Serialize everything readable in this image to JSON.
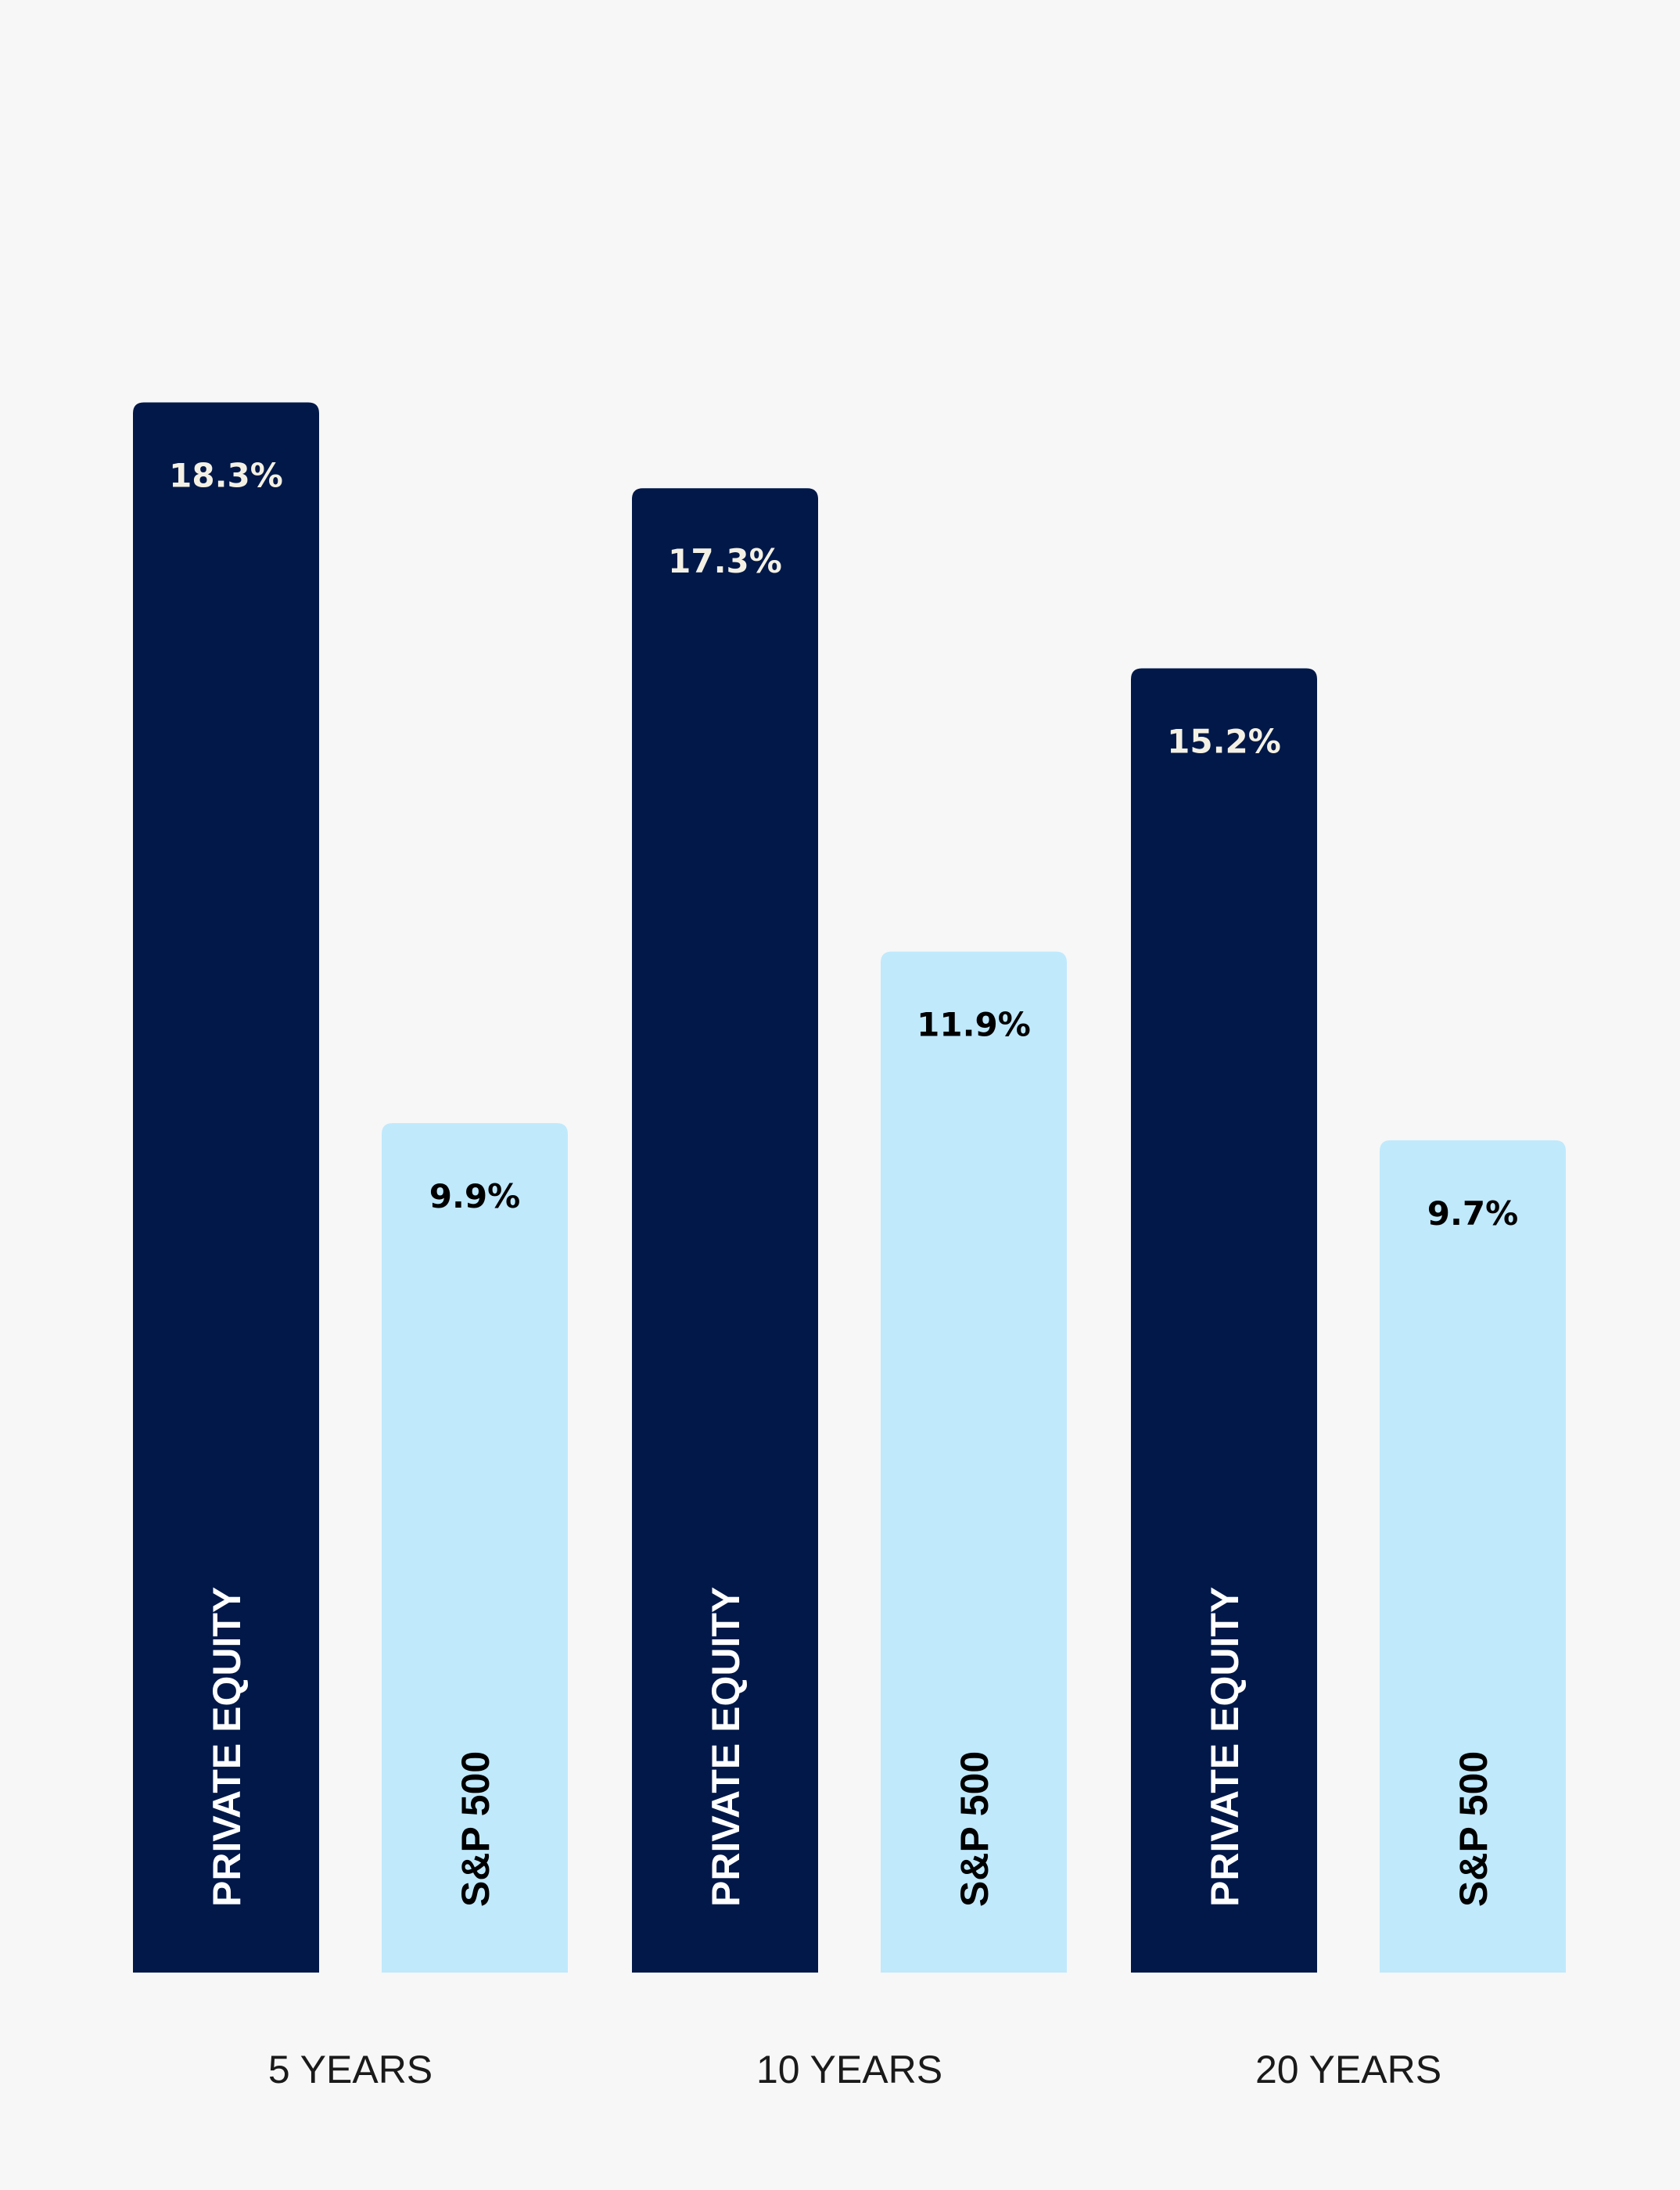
{
  "chart_data": {
    "type": "bar",
    "title": "",
    "xlabel": "",
    "ylabel": "",
    "ylim": [
      0,
      20
    ],
    "grid": false,
    "legend": "none",
    "categories": [
      "5 YEARS",
      "10 YEARS",
      "20 YEARS"
    ],
    "series": [
      {
        "name": "PRIVATE EQUITY",
        "color": "#011849",
        "value_text_color": "#f4f1e4",
        "label_text_color": "#ffffff",
        "values": [
          18.3,
          17.3,
          15.2
        ],
        "value_labels": [
          "18.3%",
          "17.3%",
          "15.2%"
        ]
      },
      {
        "name": "S&P 500",
        "color": "#c0e9fc",
        "value_text_color": "#000000",
        "label_text_color": "#000000",
        "values": [
          9.9,
          11.9,
          9.7
        ],
        "value_labels": [
          "9.9%",
          "11.9%",
          "9.7%"
        ]
      }
    ]
  }
}
